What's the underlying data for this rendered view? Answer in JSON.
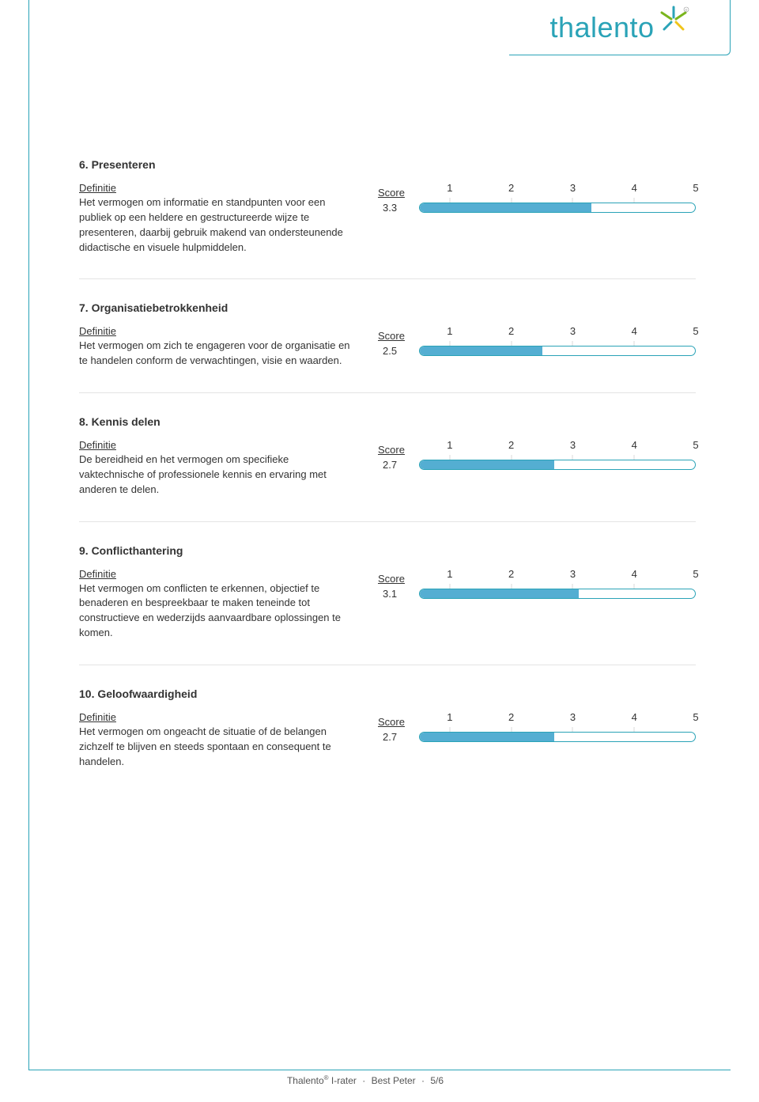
{
  "brand": {
    "name": "thalento",
    "text_color": "#2aa3b7",
    "star_colors": {
      "blue": "#2aa3b7",
      "green": "#7ab51d",
      "yellow": "#f0c419"
    }
  },
  "colors": {
    "frame": "#2aa3b7",
    "bar_fill": "#54aed2",
    "bar_border": "#2aa3b7",
    "tick": "#d9d9d9",
    "divider": "#e4e4e4",
    "text": "#333333"
  },
  "labels": {
    "definition": "Definitie",
    "score": "Score"
  },
  "scale": {
    "min": 0,
    "max": 5,
    "ticks": [
      1,
      2,
      3,
      4,
      5
    ]
  },
  "competencies": [
    {
      "number": "6.",
      "title": "Presenteren",
      "definition": "Het vermogen om informatie en standpunten voor een publiek op een heldere en gestructureerde wijze te presenteren, daarbij gebruik makend van ondersteunende didactische en visuele hulpmiddelen.",
      "score": 3.3,
      "score_display": "3.3"
    },
    {
      "number": "7.",
      "title": "Organisatiebetrokkenheid",
      "definition": "Het vermogen om zich te engageren voor de organisatie en te handelen conform de verwachtingen, visie en waarden.",
      "score": 2.5,
      "score_display": "2.5"
    },
    {
      "number": "8.",
      "title": "Kennis delen",
      "definition": "De bereidheid en het vermogen om specifieke vaktechnische of professionele kennis en ervaring met anderen te delen.",
      "score": 2.7,
      "score_display": "2.7"
    },
    {
      "number": "9.",
      "title": "Conflicthantering",
      "definition": "Het vermogen om conflicten te erkennen, objectief te benaderen en bespreekbaar te maken teneinde tot constructieve en wederzijds aanvaardbare oplossingen te komen.",
      "score": 3.1,
      "score_display": "3.1"
    },
    {
      "number": "10.",
      "title": "Geloofwaardigheid",
      "definition": "Het vermogen om ongeacht de situatie of de belangen zichzelf te blijven en steeds spontaan en consequent te handelen.",
      "score": 2.7,
      "score_display": "2.7"
    }
  ],
  "footer": {
    "brand": "Thalento",
    "product": "I-rater",
    "person": "Best Peter",
    "page": "5/6"
  }
}
